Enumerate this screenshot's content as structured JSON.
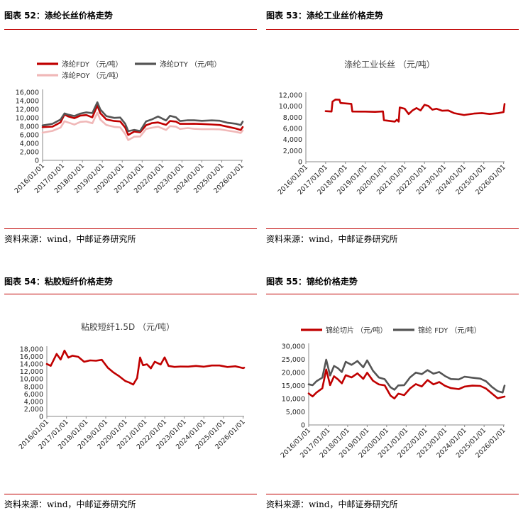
{
  "source_text": "资料来源：wind，中邮证券研究所",
  "panels": [
    {
      "title": "图表 52：涤纶长丝价格走势"
    },
    {
      "title": "图表 53：涤纶工业丝价格走势"
    },
    {
      "title": "图表 54：粘胶短纤价格走势"
    },
    {
      "title": "图表 55：锦纶价格走势"
    }
  ],
  "chart_data": [
    {
      "type": "line",
      "title": "",
      "ylim": [
        0,
        16000
      ],
      "yticks": [
        "0",
        "2,000",
        "4,000",
        "6,000",
        "8,000",
        "10,000",
        "12,000",
        "14,000",
        "16,000"
      ],
      "x_ticks": [
        "2016/01/01",
        "2017/01/01",
        "2018/01/01",
        "2019/01/01",
        "2020/01/01",
        "2021/01/01",
        "2022/01/01",
        "2023/01/01",
        "2024/01/01",
        "2025/01/01",
        "2026/01/01"
      ],
      "legend_position": "top-left",
      "series": [
        {
          "name": "涤纶FDY （元/吨）",
          "color": "#c00000",
          "x": [
            2016.0,
            2016.5,
            2016.9,
            2017.1,
            2017.3,
            2017.6,
            2017.9,
            2018.2,
            2018.5,
            2018.75,
            2018.9,
            2019.2,
            2019.6,
            2019.9,
            2020.15,
            2020.3,
            2020.6,
            2020.9,
            2021.2,
            2021.5,
            2021.8,
            2022.2,
            2022.4,
            2022.7,
            2022.9,
            2023.3,
            2023.6,
            2024.0,
            2024.5,
            2024.9,
            2025.3,
            2025.7,
            2025.95,
            2026.05
          ],
          "values": [
            7800,
            8000,
            9000,
            10800,
            10200,
            9800,
            10500,
            10700,
            10200,
            12900,
            11000,
            9500,
            9200,
            9200,
            7800,
            6000,
            6700,
            6500,
            8200,
            8800,
            9000,
            8400,
            9200,
            9000,
            8500,
            8600,
            8700,
            8600,
            8400,
            8200,
            7800,
            7500,
            7200,
            7900
          ]
        },
        {
          "name": "涤纶DTY （元/吨）",
          "color": "#555555",
          "x": [
            2016.0,
            2016.5,
            2016.9,
            2017.1,
            2017.3,
            2017.6,
            2017.9,
            2018.2,
            2018.5,
            2018.75,
            2018.9,
            2019.2,
            2019.6,
            2019.9,
            2020.15,
            2020.3,
            2020.6,
            2020.9,
            2021.2,
            2021.5,
            2021.8,
            2022.2,
            2022.4,
            2022.7,
            2022.9,
            2023.3,
            2023.6,
            2024.0,
            2024.5,
            2024.9,
            2025.3,
            2025.7,
            2025.95,
            2026.05
          ],
          "values": [
            8200,
            8500,
            9500,
            11000,
            10800,
            10500,
            11000,
            11200,
            11000,
            13600,
            12000,
            10500,
            10000,
            10000,
            8500,
            6800,
            7200,
            7000,
            9200,
            9600,
            10200,
            9300,
            10500,
            10200,
            9300,
            9400,
            9300,
            9200,
            9400,
            9400,
            8900,
            8600,
            8200,
            9000
          ]
        },
        {
          "name": "涤纶POY （元/吨）",
          "color": "#f0b8b8",
          "x": [
            2016.0,
            2016.5,
            2016.9,
            2017.1,
            2017.3,
            2017.6,
            2017.9,
            2018.2,
            2018.5,
            2018.75,
            2018.9,
            2019.2,
            2019.6,
            2019.9,
            2020.15,
            2020.3,
            2020.6,
            2020.9,
            2021.2,
            2021.5,
            2021.8,
            2022.2,
            2022.4,
            2022.7,
            2022.9,
            2023.3,
            2023.6,
            2024.0,
            2024.5,
            2024.9,
            2025.3,
            2025.7,
            2025.95,
            2026.05
          ],
          "values": [
            6500,
            7000,
            7800,
            9200,
            8800,
            8300,
            9000,
            9200,
            8800,
            11200,
            9500,
            8200,
            7800,
            7800,
            6300,
            4800,
            5500,
            5500,
            7300,
            7700,
            8000,
            7200,
            8000,
            7800,
            7300,
            7600,
            7500,
            7400,
            7300,
            7200,
            6900,
            6700,
            6500,
            7100
          ]
        }
      ]
    },
    {
      "type": "line",
      "title": "涤纶工业长丝 （元/吨）",
      "ylim": [
        0,
        12000
      ],
      "yticks": [
        "0",
        "2,000",
        "4,000",
        "6,000",
        "8,000",
        "10,000",
        "12,000"
      ],
      "x_ticks": [
        "2016/01/01",
        "2017/01/01",
        "2018/01/01",
        "2019/01/01",
        "2020/01/01",
        "2021/01/01",
        "2022/01/01",
        "2023/01/01",
        "2024/01/01",
        "2025/01/01",
        "2026/01/01"
      ],
      "series": [
        {
          "name": "",
          "color": "#c00000",
          "x": [
            2017.0,
            2017.3,
            2017.35,
            2017.5,
            2017.7,
            2017.75,
            2018.3,
            2018.35,
            2019.0,
            2019.5,
            2019.9,
            2019.95,
            2020.5,
            2020.6,
            2020.7,
            2020.75,
            2021.0,
            2021.2,
            2021.4,
            2021.6,
            2021.8,
            2022.0,
            2022.2,
            2022.4,
            2022.6,
            2022.9,
            2023.2,
            2023.5,
            2024.0,
            2024.5,
            2024.9,
            2025.3,
            2025.7,
            2026.0,
            2026.05
          ],
          "values": [
            9100,
            9100,
            10900,
            11200,
            11100,
            10500,
            10400,
            9100,
            9100,
            9000,
            9000,
            7400,
            7200,
            7600,
            7300,
            9800,
            9500,
            8500,
            9200,
            9700,
            9300,
            10300,
            10000,
            9300,
            9500,
            9200,
            9300,
            8800,
            8400,
            8600,
            8700,
            8600,
            8800,
            9000,
            10400
          ]
        }
      ]
    },
    {
      "type": "line",
      "title": "粘胶短纤1.5D （元/吨）",
      "ylim": [
        0,
        18000
      ],
      "yticks": [
        "0",
        "2,000",
        "4,000",
        "6,000",
        "8,000",
        "10,000",
        "12,000",
        "14,000",
        "16,000",
        "18,000"
      ],
      "x_ticks": [
        "2016/01/01",
        "2017/01/01",
        "2018/01/01",
        "2019/01/01",
        "2020/01/01",
        "2021/01/01",
        "2022/01/01",
        "2023/01/01",
        "2024/01/01",
        "2025/01/01",
        "2026/01/01"
      ],
      "series": [
        {
          "name": "",
          "color": "#c00000",
          "x": [
            2016.0,
            2016.2,
            2016.5,
            2016.7,
            2016.9,
            2017.1,
            2017.3,
            2017.6,
            2017.9,
            2018.2,
            2018.5,
            2018.8,
            2019.1,
            2019.4,
            2019.7,
            2020.0,
            2020.2,
            2020.4,
            2020.6,
            2020.75,
            2020.9,
            2021.1,
            2021.3,
            2021.5,
            2021.8,
            2022.0,
            2022.2,
            2022.5,
            2022.8,
            2023.2,
            2023.6,
            2024.0,
            2024.4,
            2024.8,
            2025.2,
            2025.6,
            2026.0,
            2026.05
          ],
          "values": [
            14000,
            13600,
            16800,
            15200,
            17500,
            15600,
            16200,
            16000,
            14700,
            15000,
            14800,
            15000,
            13000,
            11800,
            10800,
            9500,
            9000,
            8400,
            10200,
            15800,
            13800,
            14000,
            12800,
            14500,
            13800,
            15800,
            13600,
            13300,
            13300,
            13200,
            13400,
            13300,
            13700,
            13700,
            13200,
            13300,
            12800,
            13000
          ]
        }
      ]
    },
    {
      "type": "line",
      "title": "",
      "ylim": [
        0,
        30000
      ],
      "yticks": [
        "0",
        "5,000",
        "10,000",
        "15,000",
        "20,000",
        "25,000",
        "30,000"
      ],
      "x_ticks": [
        "2016/01/01",
        "2017/01/01",
        "2018/01/01",
        "2019/01/01",
        "2020/01/01",
        "2021/01/01",
        "2022/01/01",
        "2023/01/01",
        "2024/01/01",
        "2025/01/01",
        "2026/01/01"
      ],
      "legend_position": "top-left",
      "series": [
        {
          "name": "锦纶切片 （元/吨）",
          "color": "#c00000",
          "x": [
            2016.0,
            2016.2,
            2016.4,
            2016.7,
            2016.9,
            2017.1,
            2017.3,
            2017.5,
            2017.7,
            2017.9,
            2018.2,
            2018.5,
            2018.8,
            2019.0,
            2019.3,
            2019.6,
            2019.9,
            2020.2,
            2020.4,
            2020.6,
            2020.9,
            2021.2,
            2021.5,
            2021.8,
            2022.1,
            2022.4,
            2022.7,
            2023.0,
            2023.3,
            2023.7,
            2024.0,
            2024.4,
            2024.8,
            2025.1,
            2025.4,
            2025.7,
            2025.95,
            2026.05
          ],
          "values": [
            12000,
            11000,
            12500,
            14000,
            21000,
            15000,
            18500,
            17500,
            16000,
            19000,
            18000,
            19500,
            17500,
            20000,
            17000,
            15500,
            15000,
            11000,
            10000,
            12000,
            11500,
            14000,
            15500,
            14500,
            17000,
            15500,
            16500,
            15000,
            14000,
            13500,
            14500,
            15000,
            15000,
            14000,
            12000,
            10000,
            10500,
            10800
          ]
        },
        {
          "name": "锦纶 FDY （元/吨）",
          "color": "#555555",
          "x": [
            2016.0,
            2016.2,
            2016.4,
            2016.7,
            2016.9,
            2017.1,
            2017.3,
            2017.5,
            2017.7,
            2017.9,
            2018.2,
            2018.5,
            2018.8,
            2019.0,
            2019.3,
            2019.6,
            2019.9,
            2020.2,
            2020.4,
            2020.6,
            2020.9,
            2021.2,
            2021.5,
            2021.8,
            2022.1,
            2022.4,
            2022.7,
            2023.0,
            2023.3,
            2023.7,
            2024.0,
            2024.4,
            2024.8,
            2025.1,
            2025.4,
            2025.7,
            2025.95,
            2026.05
          ],
          "values": [
            15500,
            15000,
            16500,
            18000,
            25000,
            19000,
            22500,
            21500,
            20000,
            24000,
            23000,
            24500,
            22000,
            24500,
            20500,
            18000,
            17500,
            14500,
            13500,
            15000,
            15000,
            18000,
            20000,
            19500,
            21000,
            19500,
            20000,
            18500,
            17500,
            17500,
            18500,
            18000,
            17500,
            16500,
            14500,
            13000,
            12500,
            15000
          ]
        }
      ]
    }
  ]
}
